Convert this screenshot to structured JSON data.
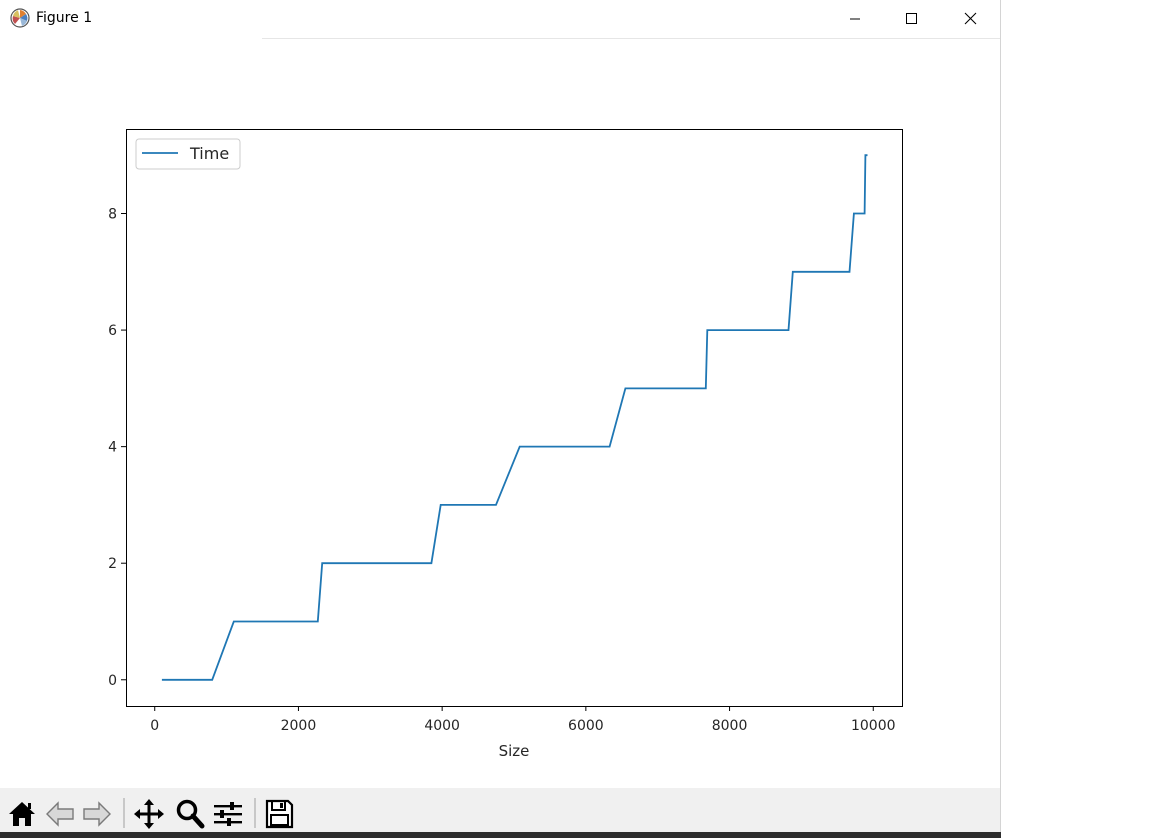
{
  "window": {
    "title": "Figure 1"
  },
  "controls": {
    "minimize": "minimize",
    "maximize": "maximize",
    "close": "close"
  },
  "toolbar": {
    "buttons": [
      {
        "name": "home",
        "icon": "home-icon"
      },
      {
        "name": "back",
        "icon": "arrow-left-icon"
      },
      {
        "name": "forward",
        "icon": "arrow-right-icon"
      },
      {
        "name": "pan",
        "icon": "move-icon"
      },
      {
        "name": "zoom",
        "icon": "magnifier-icon"
      },
      {
        "name": "subplots",
        "icon": "sliders-icon"
      },
      {
        "name": "save",
        "icon": "floppy-icon"
      }
    ]
  },
  "colors": {
    "line": "#1f77b4"
  },
  "chart_data": {
    "type": "line",
    "title": "",
    "xlabel": "Size",
    "ylabel": "",
    "xlim": [
      -400,
      10400
    ],
    "ylim": [
      -0.45,
      9.45
    ],
    "xticks": [
      0,
      2000,
      4000,
      6000,
      8000,
      10000
    ],
    "xtick_labels": [
      "0",
      "2000",
      "4000",
      "6000",
      "8000",
      "10000"
    ],
    "yticks": [
      0,
      2,
      4,
      6,
      8
    ],
    "ytick_labels": [
      "0",
      "2",
      "4",
      "6",
      "8"
    ],
    "legend": {
      "position": "upper-left",
      "entries": [
        "Time"
      ]
    },
    "grid": false,
    "series": [
      {
        "name": "Time",
        "x": [
          100,
          800,
          1100,
          2270,
          2330,
          3850,
          3980,
          4750,
          5080,
          6330,
          6550,
          7670,
          7690,
          8820,
          8880,
          9670,
          9730,
          9880,
          9890,
          9920
        ],
        "y": [
          0,
          0,
          1,
          1,
          2,
          2,
          3,
          3,
          4,
          4,
          5,
          5,
          6,
          6,
          7,
          7,
          8,
          8,
          9,
          9
        ]
      }
    ]
  }
}
